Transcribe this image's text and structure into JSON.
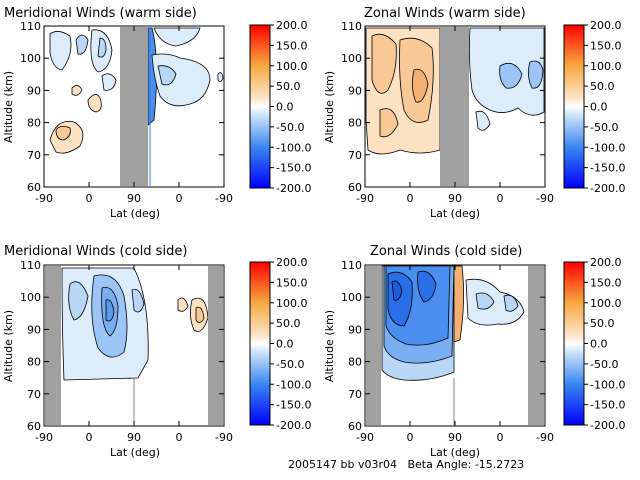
{
  "footer": {
    "text": "2005147 bb v03r04   Beta Angle: -15.2723"
  },
  "chart_data": [
    {
      "type": "contour",
      "title": "Meridional Winds (warm side)",
      "xlabel": "Lat (deg)",
      "ylabel": "Altitude (km)",
      "xticks": [
        "-90",
        "0",
        "90",
        "0",
        "-90"
      ],
      "yticks": [
        60,
        70,
        80,
        90,
        100,
        110
      ],
      "ylim": [
        60,
        110
      ],
      "colorbar": {
        "ticks": [
          "200.0",
          "150.0",
          "100.0",
          "50.0",
          "0.0",
          "-50.0",
          "-100.0",
          "-150.0",
          "-200.0"
        ],
        "range": [
          -200,
          200
        ]
      },
      "masked_ranges": [
        [
          "90 (south)",
          "~110"
        ]
      ],
      "features": [
        {
          "x": -15,
          "y": 77,
          "value": 40
        },
        {
          "x": 45,
          "y": 87,
          "value": 50
        },
        {
          "x": -20,
          "y": 98,
          "value": -20
        },
        {
          "x": 20,
          "y": 100,
          "value": -20
        },
        {
          "x": 60,
          "y": 102,
          "value": -25
        },
        {
          "x": 125,
          "y": 95,
          "value": -60
        },
        {
          "x": 145,
          "y": 92,
          "value": -25
        },
        {
          "x": 170,
          "y": 100,
          "value": -20
        }
      ]
    },
    {
      "type": "contour",
      "title": "Zonal Winds (warm side)",
      "xlabel": "Lat (deg)",
      "ylabel": "Altitude (km)",
      "xticks": [
        "-90",
        "0",
        "90",
        "0",
        "-90"
      ],
      "yticks": [
        60,
        70,
        80,
        90,
        100,
        110
      ],
      "ylim": [
        60,
        110
      ],
      "colorbar": {
        "ticks": [
          "200.0",
          "150.0",
          "100.0",
          "50.0",
          "0.0",
          "-50.0",
          "-100.0",
          "-150.0",
          "-200.0"
        ],
        "range": [
          -200,
          200
        ]
      },
      "masked_ranges": [
        [
          "~75",
          "~110"
        ]
      ],
      "features": [
        {
          "x": -55,
          "y": 92,
          "value": 40
        },
        {
          "x": -10,
          "y": 100,
          "value": 70
        },
        {
          "x": 25,
          "y": 88,
          "value": 60
        },
        {
          "x": 50,
          "y": 96,
          "value": 50
        },
        {
          "x": 130,
          "y": 95,
          "value": -60
        },
        {
          "x": 160,
          "y": 95,
          "value": -50
        }
      ]
    },
    {
      "type": "contour",
      "title": "Meridional Winds (cold side)",
      "xlabel": "Lat (deg)",
      "ylabel": "Altitude (km)",
      "xticks": [
        "-90",
        "0",
        "90",
        "0",
        "-90"
      ],
      "yticks": [
        60,
        70,
        80,
        90,
        100,
        110
      ],
      "ylim": [
        60,
        110
      ],
      "colorbar": {
        "ticks": [
          "200.0",
          "150.0",
          "100.0",
          "50.0",
          "0.0",
          "-50.0",
          "-100.0",
          "-150.0",
          "-200.0"
        ],
        "range": [
          -200,
          200
        ]
      },
      "masked_ranges": [
        [
          "-90",
          "~-75"
        ],
        [
          "~-75 (south)",
          "-90 (south)"
        ]
      ],
      "features": [
        {
          "x": -20,
          "y": 95,
          "value": -50
        },
        {
          "x": 38,
          "y": 96,
          "value": -110
        },
        {
          "x": 60,
          "y": 90,
          "value": -50
        },
        {
          "x": 125,
          "y": 100,
          "value": 30
        },
        {
          "x": 155,
          "y": 93,
          "value": 60
        }
      ]
    },
    {
      "type": "contour",
      "title": "Zonal Winds (cold side)",
      "xlabel": "Lat (deg)",
      "ylabel": "Altitude (km)",
      "xticks": [
        "-90",
        "0",
        "90",
        "0",
        "-90"
      ],
      "yticks": [
        60,
        70,
        80,
        90,
        100,
        110
      ],
      "ylim": [
        60,
        110
      ],
      "colorbar": {
        "ticks": [
          "200.0",
          "150.0",
          "100.0",
          "50.0",
          "0.0",
          "-50.0",
          "-100.0",
          "-150.0",
          "-200.0"
        ],
        "range": [
          -200,
          200
        ]
      },
      "masked_ranges": [
        [
          "-90",
          "~-75"
        ],
        [
          "~-75 (south)",
          "-90 (south)"
        ]
      ],
      "features": [
        {
          "x": -40,
          "y": 100,
          "value": -150
        },
        {
          "x": 10,
          "y": 95,
          "value": -120
        },
        {
          "x": 50,
          "y": 92,
          "value": -100
        },
        {
          "x": 95,
          "y": 95,
          "value": 80
        },
        {
          "x": 130,
          "y": 95,
          "value": -20
        }
      ]
    }
  ]
}
